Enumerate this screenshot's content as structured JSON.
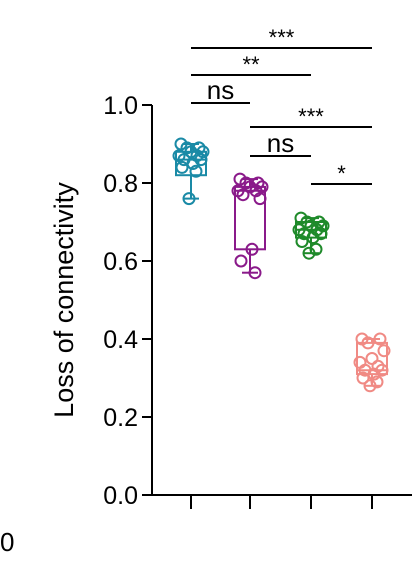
{
  "chart_data": {
    "type": "box-scatter",
    "ylabel": "Loss of connectivity",
    "ylim": [
      0.0,
      1.0
    ],
    "yticks": [
      "0.0",
      "0.2",
      "0.4",
      "0.6",
      "0.8",
      "1.0"
    ],
    "series": [
      {
        "color": "#1a8aa6",
        "box": {
          "min": 0.76,
          "q1": 0.82,
          "median": 0.86,
          "q3": 0.88,
          "max": 0.9
        },
        "points": [
          0.9,
          0.89,
          0.89,
          0.88,
          0.88,
          0.87,
          0.87,
          0.86,
          0.86,
          0.85,
          0.84,
          0.83,
          0.76
        ]
      },
      {
        "color": "#8a1a8a",
        "box": {
          "min": 0.57,
          "q1": 0.63,
          "median": 0.78,
          "q3": 0.79,
          "max": 0.81
        },
        "points": [
          0.81,
          0.8,
          0.8,
          0.79,
          0.79,
          0.78,
          0.78,
          0.77,
          0.76,
          0.63,
          0.6,
          0.57
        ]
      },
      {
        "color": "#1f8a2a",
        "box": {
          "min": 0.62,
          "q1": 0.66,
          "median": 0.68,
          "q3": 0.7,
          "max": 0.71
        },
        "points": [
          0.71,
          0.7,
          0.7,
          0.69,
          0.69,
          0.68,
          0.68,
          0.67,
          0.67,
          0.66,
          0.65,
          0.63,
          0.62
        ]
      },
      {
        "color": "#f08a84",
        "box": {
          "min": 0.28,
          "q1": 0.31,
          "median": 0.32,
          "q3": 0.39,
          "max": 0.4
        },
        "points": [
          0.4,
          0.4,
          0.39,
          0.37,
          0.35,
          0.34,
          0.33,
          0.32,
          0.32,
          0.31,
          0.3,
          0.29,
          0.28
        ]
      }
    ],
    "significance": [
      {
        "from": 1,
        "to": 4,
        "label": "***"
      },
      {
        "from": 1,
        "to": 3,
        "label": "**"
      },
      {
        "from": 1,
        "to": 2,
        "label": "ns"
      },
      {
        "from": 2,
        "to": 4,
        "label": "***"
      },
      {
        "from": 2,
        "to": 3,
        "label": "ns"
      },
      {
        "from": 3,
        "to": 4,
        "label": "*"
      }
    ]
  },
  "stray_label": "0"
}
